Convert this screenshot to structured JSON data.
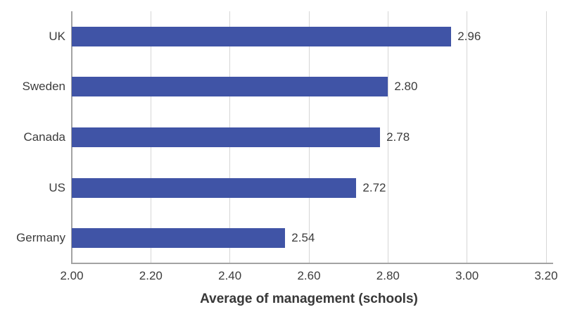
{
  "chart_data": {
    "type": "bar",
    "orientation": "horizontal",
    "title": "",
    "categories": [
      "UK",
      "Sweden",
      "Canada",
      "US",
      "Germany"
    ],
    "values": [
      2.96,
      2.8,
      2.78,
      2.72,
      2.54
    ],
    "value_labels": [
      "2.96",
      "2.80",
      "2.78",
      "2.72",
      "2.54"
    ],
    "xlabel": "Average of management (schools)",
    "ylabel": "",
    "xlim": [
      2.0,
      3.2
    ],
    "xticks": [
      2.0,
      2.2,
      2.4,
      2.6,
      2.8,
      3.0,
      3.2
    ],
    "xtick_labels": [
      "2.00",
      "2.20",
      "2.40",
      "2.60",
      "2.80",
      "3.00",
      "3.20"
    ],
    "grid": "vertical-only",
    "legend": false
  },
  "colors": {
    "bar": "#4054a6",
    "gridline": "#d6d6d6",
    "axis": "#a3a3a3",
    "text": "#3c3c3c",
    "axis_title": "#383838"
  }
}
